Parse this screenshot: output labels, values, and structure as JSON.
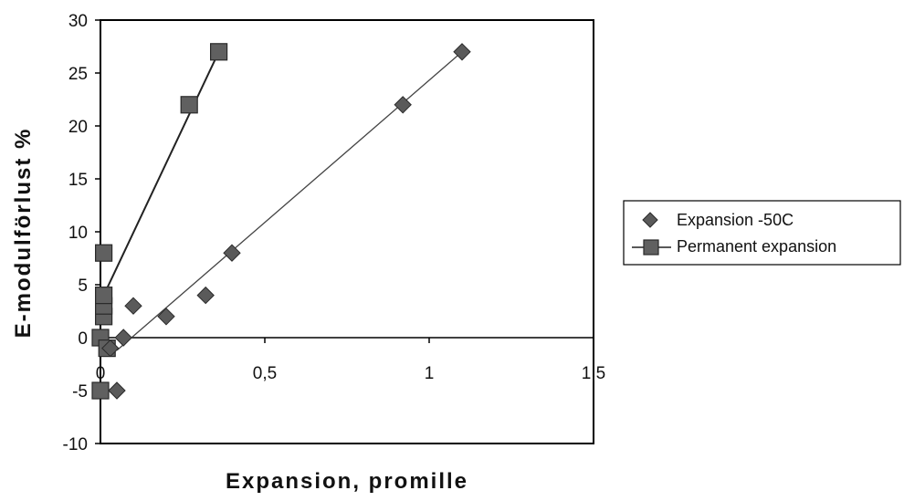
{
  "chart_data": {
    "type": "scatter",
    "xlabel": "Expansion, promille",
    "ylabel": "E-modulförlust %",
    "xlim": [
      0,
      1.5
    ],
    "ylim": [
      -10,
      30
    ],
    "x_ticks": [
      "0",
      "0,5",
      "1",
      "1,5"
    ],
    "y_ticks": [
      "-10",
      "-5",
      "0",
      "5",
      "10",
      "15",
      "20",
      "25",
      "30"
    ],
    "x_tick_values": [
      0,
      0.5,
      1,
      1.5
    ],
    "y_tick_values": [
      -10,
      -5,
      0,
      5,
      10,
      15,
      20,
      25,
      30
    ],
    "grid": false,
    "legend_position": "right",
    "series": [
      {
        "name": "Expansion -50C",
        "marker": "diamond",
        "color": "#555555",
        "points": [
          {
            "x": 0.05,
            "y": -5
          },
          {
            "x": 0.03,
            "y": -1
          },
          {
            "x": 0.07,
            "y": 0
          },
          {
            "x": 0.1,
            "y": 3
          },
          {
            "x": 0.2,
            "y": 2
          },
          {
            "x": 0.32,
            "y": 4
          },
          {
            "x": 0.4,
            "y": 8
          },
          {
            "x": 0.92,
            "y": 22
          },
          {
            "x": 1.1,
            "y": 27
          }
        ],
        "trendline": [
          {
            "x": 0.05,
            "y": -1.2
          },
          {
            "x": 1.1,
            "y": 27
          }
        ]
      },
      {
        "name": "Permanent expansion",
        "marker": "square",
        "color": "#555555",
        "points": [
          {
            "x": 0.0,
            "y": -5
          },
          {
            "x": 0.0,
            "y": 0
          },
          {
            "x": 0.02,
            "y": -1
          },
          {
            "x": 0.01,
            "y": 2
          },
          {
            "x": 0.01,
            "y": 3
          },
          {
            "x": 0.01,
            "y": 4
          },
          {
            "x": 0.01,
            "y": 8
          },
          {
            "x": 0.27,
            "y": 22
          },
          {
            "x": 0.36,
            "y": 27
          }
        ],
        "trendline": [
          {
            "x": 0.01,
            "y": 4
          },
          {
            "x": 0.36,
            "y": 27
          }
        ]
      }
    ]
  }
}
